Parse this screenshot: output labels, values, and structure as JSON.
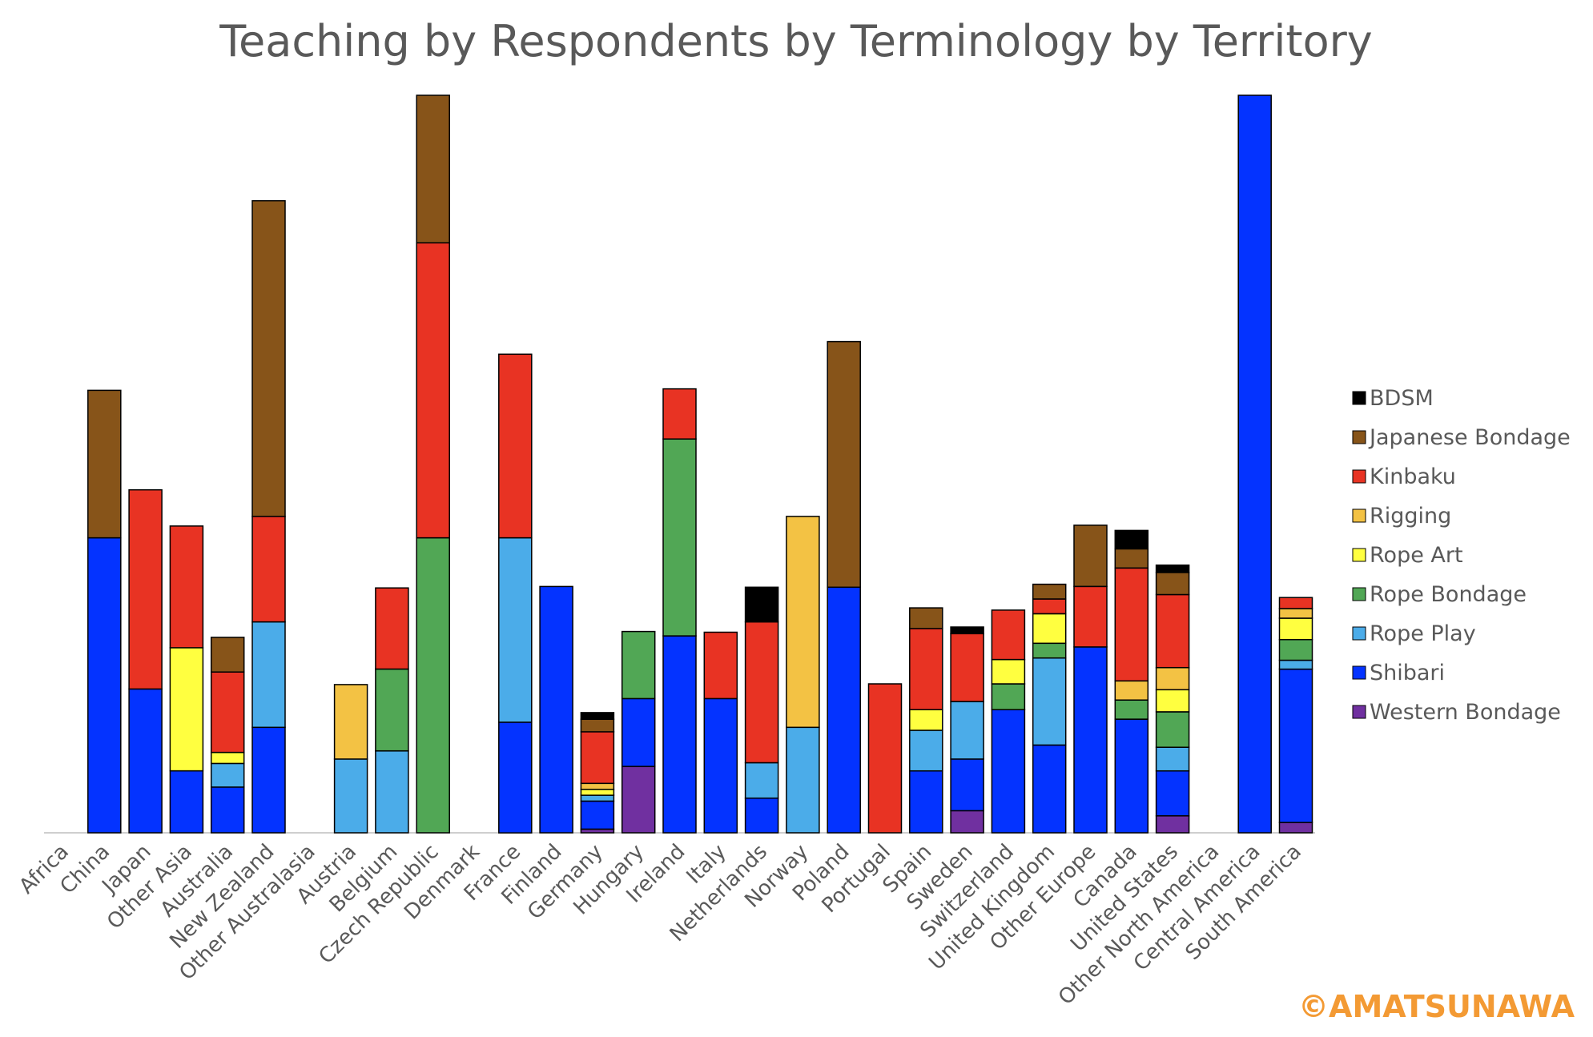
{
  "chart_data": {
    "type": "bar",
    "stacked": true,
    "title": "Teaching by Respondents by Terminology by Territory",
    "xlabel": "",
    "ylabel": "",
    "ylim": [
      0,
      1
    ],
    "grid": false,
    "legend_position": "right",
    "categories": [
      "Africa",
      "China",
      "Japan",
      "Other Asia",
      "Australia",
      "New Zealand",
      "Other Australasia",
      "Austria",
      "Belgium",
      "Czech Republic",
      "Denmark",
      "France",
      "Finland",
      "Germany",
      "Hungary",
      "Ireland",
      "Italy",
      "Netherlands",
      "Norway",
      "Poland",
      "Portugal",
      "Spain",
      "Sweden",
      "Switzerland",
      "United Kingdom",
      "Other Europe",
      "Canada",
      "United States",
      "Other North America",
      "Central America",
      "South America"
    ],
    "series": [
      {
        "name": "Western Bondage",
        "color": "#7030A0",
        "values": [
          0,
          0,
          0,
          0,
          0,
          0,
          0,
          0,
          0,
          0,
          0,
          0,
          0,
          0.005,
          0.09,
          0,
          0,
          0,
          0,
          0,
          0,
          0,
          0.03,
          0,
          0,
          0,
          0,
          0.023,
          0,
          0,
          0.014
        ]
      },
      {
        "name": "Shibari",
        "color": "#0433FF",
        "values": [
          0,
          0.4,
          0.195,
          0.084,
          0.062,
          0.143,
          0,
          0,
          0,
          0,
          0,
          0.15,
          0.334,
          0.038,
          0.092,
          0.267,
          0.182,
          0.047,
          0,
          0.333,
          0,
          0.084,
          0.07,
          0.167,
          0.119,
          0.252,
          0.154,
          0.061,
          0,
          1,
          0.208
        ]
      },
      {
        "name": "Rope Play",
        "color": "#4BACE9",
        "values": [
          0,
          0,
          0,
          0,
          0.032,
          0.143,
          0,
          0.1,
          0.111,
          0,
          0,
          0.25,
          0,
          0.008,
          0,
          0,
          0,
          0.048,
          0.143,
          0,
          0,
          0.055,
          0.078,
          0,
          0.118,
          0,
          0,
          0.032,
          0,
          0,
          0.012
        ]
      },
      {
        "name": "Rope Bondage",
        "color": "#51A755",
        "values": [
          0,
          0,
          0,
          0,
          0,
          0,
          0,
          0,
          0.111,
          0.4,
          0,
          0,
          0,
          0,
          0.091,
          0.267,
          0,
          0,
          0,
          0,
          0,
          0,
          0,
          0.035,
          0.02,
          0,
          0.026,
          0.048,
          0,
          0,
          0.028
        ]
      },
      {
        "name": "Rope Art",
        "color": "#FFFF40",
        "values": [
          0,
          0,
          0,
          0.167,
          0.015,
          0,
          0,
          0,
          0,
          0,
          0,
          0,
          0,
          0.008,
          0,
          0,
          0,
          0,
          0,
          0,
          0,
          0.028,
          0,
          0.033,
          0.04,
          0,
          0,
          0.03,
          0,
          0,
          0.029
        ]
      },
      {
        "name": "Rigging",
        "color": "#F3C244",
        "values": [
          0,
          0,
          0,
          0,
          0,
          0,
          0,
          0.101,
          0,
          0,
          0,
          0,
          0,
          0.008,
          0,
          0,
          0,
          0,
          0.286,
          0,
          0,
          0,
          0,
          0,
          0,
          0,
          0.026,
          0.03,
          0,
          0,
          0.013
        ]
      },
      {
        "name": "Kinbaku",
        "color": "#E83323",
        "values": [
          0,
          0,
          0.27,
          0.165,
          0.109,
          0.143,
          0,
          0,
          0.11,
          0.4,
          0,
          0.249,
          0,
          0.07,
          0,
          0.068,
          0.09,
          0.191,
          0,
          0,
          0.202,
          0.11,
          0.092,
          0.067,
          0.02,
          0.082,
          0.153,
          0.099,
          0,
          0,
          0.015
        ]
      },
      {
        "name": "Japanese Bondage",
        "color": "#875419",
        "values": [
          0,
          0.2,
          0,
          0,
          0.047,
          0.428,
          0,
          0,
          0,
          0.2,
          0,
          0,
          0,
          0.017,
          0,
          0,
          0,
          0,
          0,
          0.333,
          0,
          0.028,
          0,
          0,
          0.02,
          0.083,
          0.026,
          0.03,
          0,
          0,
          0
        ]
      },
      {
        "name": "BDSM",
        "color": "#000000",
        "values": [
          0,
          0,
          0,
          0,
          0,
          0,
          0,
          0,
          0,
          0,
          0,
          0,
          0,
          0.009,
          0,
          0,
          0,
          0.047,
          0,
          0,
          0,
          0,
          0.009,
          0,
          0,
          0,
          0.025,
          0.01,
          0,
          0,
          0
        ]
      }
    ]
  },
  "watermark": "©AMATSUNAWA"
}
